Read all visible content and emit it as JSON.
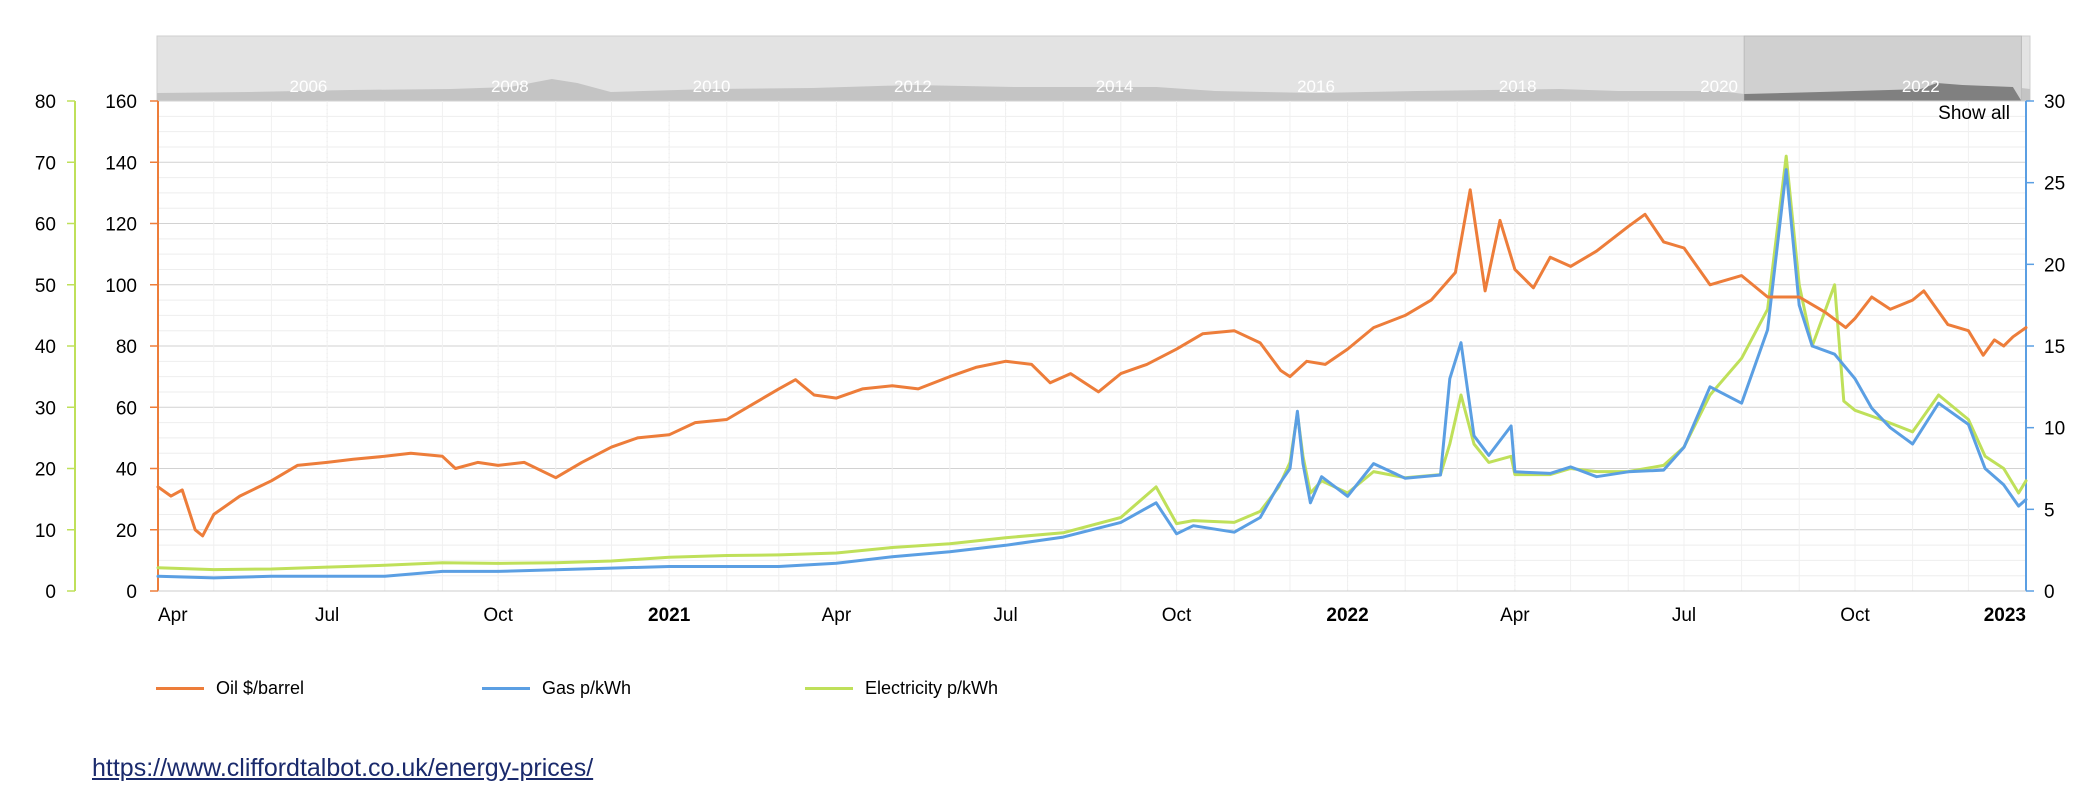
{
  "colors": {
    "oil": "#ED7D3A",
    "gas": "#5B9FE3",
    "electricity": "#BFE05A",
    "grid": "#dddddd",
    "navigator_bg": "#e3e3e3",
    "navigator_selected": "#808080"
  },
  "navigator": {
    "year_labels": [
      "2006",
      "2008",
      "2010",
      "2012",
      "2014",
      "2016",
      "2018",
      "2020",
      "2022"
    ],
    "show_all_label": "Show all",
    "selected_range": [
      "2020-04-01",
      "2023-01-01"
    ]
  },
  "legend": {
    "oil_label": "Oil $/barrel",
    "gas_label": "Gas p/kWh",
    "electricity_label": "Electricity p/kWh"
  },
  "source_link": "https://www.cliffordtalbot.co.uk/energy-prices/",
  "chart_data": {
    "type": "line",
    "title": "",
    "grid": true,
    "legend_position": "bottom-left",
    "x_range": [
      "2020-04-01",
      "2023-01-01"
    ],
    "x_tick_labels": [
      {
        "date": "2020-04-01",
        "label": "Apr",
        "bold": false
      },
      {
        "date": "2020-07-01",
        "label": "Jul",
        "bold": false
      },
      {
        "date": "2020-10-01",
        "label": "Oct",
        "bold": false
      },
      {
        "date": "2021-01-01",
        "label": "2021",
        "bold": true
      },
      {
        "date": "2021-04-01",
        "label": "Apr",
        "bold": false
      },
      {
        "date": "2021-07-01",
        "label": "Jul",
        "bold": false
      },
      {
        "date": "2021-10-01",
        "label": "Oct",
        "bold": false
      },
      {
        "date": "2022-01-01",
        "label": "2022",
        "bold": true
      },
      {
        "date": "2022-04-01",
        "label": "Apr",
        "bold": false
      },
      {
        "date": "2022-07-01",
        "label": "Jul",
        "bold": false
      },
      {
        "date": "2022-10-01",
        "label": "Oct",
        "bold": false
      },
      {
        "date": "2023-01-01",
        "label": "2023",
        "bold": true
      }
    ],
    "axes": {
      "oil": {
        "side": "left",
        "min": 0,
        "max": 160,
        "ticks": [
          0,
          20,
          40,
          60,
          80,
          100,
          120,
          140,
          160
        ]
      },
      "electricity": {
        "side": "left-outer",
        "min": 0,
        "max": 80,
        "ticks": [
          0,
          10,
          20,
          30,
          40,
          50,
          60,
          70,
          80
        ]
      },
      "gas": {
        "side": "right",
        "min": 0,
        "max": 30,
        "ticks": [
          0,
          5,
          10,
          15,
          20,
          25,
          30
        ]
      }
    },
    "series": [
      {
        "name": "Oil $/barrel",
        "axis": "oil",
        "points": [
          [
            "2020-04-01",
            34
          ],
          [
            "2020-04-08",
            31
          ],
          [
            "2020-04-14",
            33
          ],
          [
            "2020-04-21",
            20
          ],
          [
            "2020-04-25",
            18
          ],
          [
            "2020-05-01",
            25
          ],
          [
            "2020-05-15",
            31
          ],
          [
            "2020-06-01",
            36
          ],
          [
            "2020-06-15",
            41
          ],
          [
            "2020-07-01",
            42
          ],
          [
            "2020-07-15",
            43
          ],
          [
            "2020-08-01",
            44
          ],
          [
            "2020-08-15",
            45
          ],
          [
            "2020-09-01",
            44
          ],
          [
            "2020-09-08",
            40
          ],
          [
            "2020-09-20",
            42
          ],
          [
            "2020-10-01",
            41
          ],
          [
            "2020-10-15",
            42
          ],
          [
            "2020-11-01",
            37
          ],
          [
            "2020-11-15",
            42
          ],
          [
            "2020-12-01",
            47
          ],
          [
            "2020-12-15",
            50
          ],
          [
            "2021-01-01",
            51
          ],
          [
            "2021-01-15",
            55
          ],
          [
            "2021-02-01",
            56
          ],
          [
            "2021-02-15",
            61
          ],
          [
            "2021-03-01",
            66
          ],
          [
            "2021-03-10",
            69
          ],
          [
            "2021-03-20",
            64
          ],
          [
            "2021-04-01",
            63
          ],
          [
            "2021-04-15",
            66
          ],
          [
            "2021-05-01",
            67
          ],
          [
            "2021-05-15",
            66
          ],
          [
            "2021-06-01",
            70
          ],
          [
            "2021-06-15",
            73
          ],
          [
            "2021-07-01",
            75
          ],
          [
            "2021-07-15",
            74
          ],
          [
            "2021-07-25",
            68
          ],
          [
            "2021-08-05",
            71
          ],
          [
            "2021-08-20",
            65
          ],
          [
            "2021-09-01",
            71
          ],
          [
            "2021-09-15",
            74
          ],
          [
            "2021-10-01",
            79
          ],
          [
            "2021-10-15",
            84
          ],
          [
            "2021-11-01",
            85
          ],
          [
            "2021-11-15",
            81
          ],
          [
            "2021-11-26",
            72
          ],
          [
            "2021-12-01",
            70
          ],
          [
            "2021-12-10",
            75
          ],
          [
            "2021-12-20",
            74
          ],
          [
            "2022-01-01",
            79
          ],
          [
            "2022-01-15",
            86
          ],
          [
            "2022-02-01",
            90
          ],
          [
            "2022-02-15",
            95
          ],
          [
            "2022-02-28",
            104
          ],
          [
            "2022-03-08",
            131
          ],
          [
            "2022-03-16",
            98
          ],
          [
            "2022-03-24",
            121
          ],
          [
            "2022-04-01",
            105
          ],
          [
            "2022-04-11",
            99
          ],
          [
            "2022-04-20",
            109
          ],
          [
            "2022-05-01",
            106
          ],
          [
            "2022-05-15",
            111
          ],
          [
            "2022-06-01",
            119
          ],
          [
            "2022-06-10",
            123
          ],
          [
            "2022-06-20",
            114
          ],
          [
            "2022-07-01",
            112
          ],
          [
            "2022-07-15",
            100
          ],
          [
            "2022-08-01",
            103
          ],
          [
            "2022-08-15",
            96
          ],
          [
            "2022-09-01",
            96
          ],
          [
            "2022-09-15",
            91
          ],
          [
            "2022-09-26",
            86
          ],
          [
            "2022-10-01",
            89
          ],
          [
            "2022-10-10",
            96
          ],
          [
            "2022-10-20",
            92
          ],
          [
            "2022-11-01",
            95
          ],
          [
            "2022-11-07",
            98
          ],
          [
            "2022-11-20",
            87
          ],
          [
            "2022-12-01",
            85
          ],
          [
            "2022-12-09",
            77
          ],
          [
            "2022-12-15",
            82
          ],
          [
            "2022-12-20",
            80
          ],
          [
            "2022-12-25",
            83
          ],
          [
            "2023-01-01",
            86
          ]
        ]
      },
      {
        "name": "Gas p/kWh",
        "axis": "gas",
        "points": [
          [
            "2020-04-01",
            0.9
          ],
          [
            "2020-05-01",
            0.8
          ],
          [
            "2020-06-01",
            0.9
          ],
          [
            "2020-07-01",
            0.9
          ],
          [
            "2020-08-01",
            0.9
          ],
          [
            "2020-09-01",
            1.2
          ],
          [
            "2020-10-01",
            1.2
          ],
          [
            "2020-11-01",
            1.3
          ],
          [
            "2020-12-01",
            1.4
          ],
          [
            "2021-01-01",
            1.5
          ],
          [
            "2021-02-01",
            1.5
          ],
          [
            "2021-03-01",
            1.5
          ],
          [
            "2021-04-01",
            1.7
          ],
          [
            "2021-05-01",
            2.1
          ],
          [
            "2021-06-01",
            2.4
          ],
          [
            "2021-07-01",
            2.8
          ],
          [
            "2021-08-01",
            3.3
          ],
          [
            "2021-09-01",
            4.2
          ],
          [
            "2021-09-20",
            5.4
          ],
          [
            "2021-10-01",
            3.5
          ],
          [
            "2021-10-10",
            4.0
          ],
          [
            "2021-11-01",
            3.6
          ],
          [
            "2021-11-15",
            4.5
          ],
          [
            "2021-11-25",
            6.5
          ],
          [
            "2021-12-01",
            7.5
          ],
          [
            "2021-12-05",
            11.0
          ],
          [
            "2021-12-08",
            7.8
          ],
          [
            "2021-12-12",
            5.4
          ],
          [
            "2021-12-18",
            7.0
          ],
          [
            "2022-01-01",
            5.8
          ],
          [
            "2022-01-15",
            7.8
          ],
          [
            "2022-02-01",
            6.9
          ],
          [
            "2022-02-20",
            7.1
          ],
          [
            "2022-02-25",
            13.0
          ],
          [
            "2022-03-03",
            15.2
          ],
          [
            "2022-03-10",
            9.5
          ],
          [
            "2022-03-18",
            8.3
          ],
          [
            "2022-03-30",
            10.1
          ],
          [
            "2022-04-01",
            7.3
          ],
          [
            "2022-04-20",
            7.2
          ],
          [
            "2022-05-01",
            7.6
          ],
          [
            "2022-05-15",
            7.0
          ],
          [
            "2022-06-01",
            7.3
          ],
          [
            "2022-06-20",
            7.4
          ],
          [
            "2022-07-01",
            8.8
          ],
          [
            "2022-07-15",
            12.5
          ],
          [
            "2022-08-01",
            11.5
          ],
          [
            "2022-08-15",
            16.0
          ],
          [
            "2022-08-25",
            25.8
          ],
          [
            "2022-09-01",
            17.5
          ],
          [
            "2022-09-08",
            15.0
          ],
          [
            "2022-09-20",
            14.5
          ],
          [
            "2022-10-01",
            13.0
          ],
          [
            "2022-10-10",
            11.2
          ],
          [
            "2022-10-20",
            10.0
          ],
          [
            "2022-11-01",
            9.0
          ],
          [
            "2022-11-15",
            11.5
          ],
          [
            "2022-12-01",
            10.2
          ],
          [
            "2022-12-10",
            7.5
          ],
          [
            "2022-12-20",
            6.5
          ],
          [
            "2022-12-28",
            5.2
          ],
          [
            "2023-01-01",
            5.6
          ]
        ]
      },
      {
        "name": "Electricity p/kWh",
        "axis": "electricity",
        "points": [
          [
            "2020-04-01",
            3.8
          ],
          [
            "2020-05-01",
            3.5
          ],
          [
            "2020-06-01",
            3.6
          ],
          [
            "2020-07-01",
            3.9
          ],
          [
            "2020-08-01",
            4.2
          ],
          [
            "2020-09-01",
            4.6
          ],
          [
            "2020-10-01",
            4.5
          ],
          [
            "2020-11-01",
            4.6
          ],
          [
            "2020-12-01",
            4.9
          ],
          [
            "2021-01-01",
            5.5
          ],
          [
            "2021-02-01",
            5.8
          ],
          [
            "2021-03-01",
            5.9
          ],
          [
            "2021-04-01",
            6.2
          ],
          [
            "2021-05-01",
            7.1
          ],
          [
            "2021-06-01",
            7.7
          ],
          [
            "2021-07-01",
            8.7
          ],
          [
            "2021-08-01",
            9.5
          ],
          [
            "2021-09-01",
            12.0
          ],
          [
            "2021-09-20",
            17.0
          ],
          [
            "2021-10-01",
            11.0
          ],
          [
            "2021-10-10",
            11.5
          ],
          [
            "2021-11-01",
            11.2
          ],
          [
            "2021-11-15",
            13.0
          ],
          [
            "2021-11-25",
            17.0
          ],
          [
            "2021-12-01",
            21.0
          ],
          [
            "2021-12-05",
            29.0
          ],
          [
            "2021-12-08",
            22.0
          ],
          [
            "2021-12-12",
            16.0
          ],
          [
            "2021-12-18",
            18.0
          ],
          [
            "2022-01-01",
            16.0
          ],
          [
            "2022-01-15",
            19.5
          ],
          [
            "2022-02-01",
            18.5
          ],
          [
            "2022-02-20",
            19.0
          ],
          [
            "2022-02-25",
            24.0
          ],
          [
            "2022-03-03",
            32.0
          ],
          [
            "2022-03-10",
            24.0
          ],
          [
            "2022-03-18",
            21.0
          ],
          [
            "2022-03-30",
            22.0
          ],
          [
            "2022-04-01",
            19.0
          ],
          [
            "2022-04-20",
            19.0
          ],
          [
            "2022-05-01",
            20.0
          ],
          [
            "2022-05-15",
            19.5
          ],
          [
            "2022-06-01",
            19.5
          ],
          [
            "2022-06-20",
            20.5
          ],
          [
            "2022-07-01",
            23.5
          ],
          [
            "2022-07-15",
            32.0
          ],
          [
            "2022-08-01",
            38.0
          ],
          [
            "2022-08-15",
            46.0
          ],
          [
            "2022-08-25",
            71.0
          ],
          [
            "2022-09-01",
            50.0
          ],
          [
            "2022-09-08",
            40.0
          ],
          [
            "2022-09-20",
            50.0
          ],
          [
            "2022-09-25",
            31.0
          ],
          [
            "2022-10-01",
            29.5
          ],
          [
            "2022-10-15",
            28.0
          ],
          [
            "2022-11-01",
            26.0
          ],
          [
            "2022-11-15",
            32.0
          ],
          [
            "2022-12-01",
            28.0
          ],
          [
            "2022-12-10",
            22.0
          ],
          [
            "2022-12-20",
            20.0
          ],
          [
            "2022-12-28",
            16.0
          ],
          [
            "2023-01-01",
            18.0
          ]
        ]
      }
    ]
  }
}
